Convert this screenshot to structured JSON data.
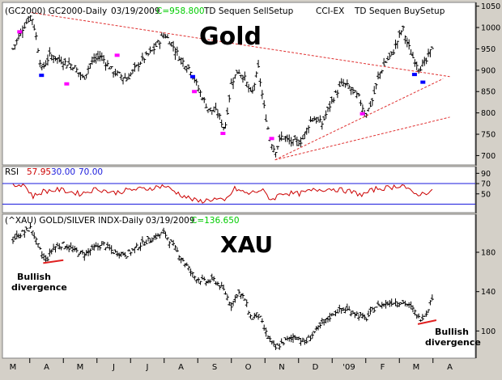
{
  "colors": {
    "frame": "#d4d0c8",
    "panel_bg": "#ffffff",
    "bar": "#000000",
    "trendline": "#e03030",
    "divergence": "#e02020",
    "rsi_line": "#cc0000",
    "rsi_bands": "#1a1adc",
    "close_text": "#00cc00",
    "sell_setup": "#ff00ff",
    "buy_setup": "#0000ff"
  },
  "gold_panel": {
    "header_symbol": "(GC2000) GC2000-Daily",
    "header_date": "03/19/2009",
    "header_close": "C=958.800",
    "header_study_1": "TD Sequen SellSetup",
    "header_study_2": "CCI-EX",
    "header_study_3": "TD Sequen BuySetup",
    "title": "Gold"
  },
  "rsi_panel": {
    "label": "RSI",
    "value_1": "57.95",
    "value_2": "30.00",
    "value_3": "70.00"
  },
  "xau_panel": {
    "header_symbol": "(^XAU) GOLD/SILVER INDX-Daily",
    "header_date": "03/19/2009",
    "header_close": "C=136.650",
    "title": "XAU",
    "annotation_left_1": "Bullish",
    "annotation_left_2": "divergence",
    "annotation_right_1": "Bullish",
    "annotation_right_2": "divergence"
  },
  "x_axis": {
    "labels": [
      "M",
      "A",
      "M",
      "J",
      "J",
      "A",
      "S",
      "O",
      "N",
      "D",
      "'09",
      "F",
      "M",
      "A"
    ]
  },
  "chart_data": [
    {
      "type": "ohlc",
      "name": "GC2000 Daily",
      "y_axis_ticks": [
        700,
        750,
        800,
        850,
        900,
        950,
        1000,
        1050
      ],
      "ylim": [
        680,
        1055
      ],
      "months": [
        "M",
        "A",
        "M",
        "J",
        "J",
        "A",
        "S",
        "O",
        "N",
        "D",
        "'09",
        "F",
        "M",
        "A"
      ],
      "close_path": [
        {
          "m": 0.0,
          "v": 950
        },
        {
          "m": 0.3,
          "v": 1000
        },
        {
          "m": 0.55,
          "v": 1030
        },
        {
          "m": 0.7,
          "v": 975
        },
        {
          "m": 0.85,
          "v": 900
        },
        {
          "m": 1.1,
          "v": 935
        },
        {
          "m": 1.5,
          "v": 920
        },
        {
          "m": 1.8,
          "v": 910
        },
        {
          "m": 2.1,
          "v": 880
        },
        {
          "m": 2.3,
          "v": 915
        },
        {
          "m": 2.6,
          "v": 935
        },
        {
          "m": 3.0,
          "v": 895
        },
        {
          "m": 3.4,
          "v": 880
        },
        {
          "m": 3.8,
          "v": 920
        },
        {
          "m": 4.2,
          "v": 950
        },
        {
          "m": 4.5,
          "v": 985
        },
        {
          "m": 4.7,
          "v": 965
        },
        {
          "m": 5.0,
          "v": 925
        },
        {
          "m": 5.3,
          "v": 900
        },
        {
          "m": 5.5,
          "v": 860
        },
        {
          "m": 5.8,
          "v": 810
        },
        {
          "m": 6.1,
          "v": 800
        },
        {
          "m": 6.3,
          "v": 760
        },
        {
          "m": 6.5,
          "v": 870
        },
        {
          "m": 6.7,
          "v": 900
        },
        {
          "m": 6.9,
          "v": 880
        },
        {
          "m": 7.1,
          "v": 840
        },
        {
          "m": 7.3,
          "v": 905
        },
        {
          "m": 7.5,
          "v": 800
        },
        {
          "m": 7.65,
          "v": 740
        },
        {
          "m": 7.8,
          "v": 710
        },
        {
          "m": 8.0,
          "v": 745
        },
        {
          "m": 8.3,
          "v": 730
        },
        {
          "m": 8.6,
          "v": 735
        },
        {
          "m": 8.9,
          "v": 790
        },
        {
          "m": 9.2,
          "v": 775
        },
        {
          "m": 9.5,
          "v": 830
        },
        {
          "m": 9.8,
          "v": 870
        },
        {
          "m": 10.0,
          "v": 860
        },
        {
          "m": 10.3,
          "v": 835
        },
        {
          "m": 10.5,
          "v": 795
        },
        {
          "m": 10.7,
          "v": 830
        },
        {
          "m": 10.9,
          "v": 890
        },
        {
          "m": 11.1,
          "v": 920
        },
        {
          "m": 11.3,
          "v": 940
        },
        {
          "m": 11.5,
          "v": 980
        },
        {
          "m": 11.6,
          "v": 1000
        },
        {
          "m": 11.75,
          "v": 960
        },
        {
          "m": 11.9,
          "v": 930
        },
        {
          "m": 12.1,
          "v": 905
        },
        {
          "m": 12.3,
          "v": 920
        },
        {
          "m": 12.5,
          "v": 958.8
        }
      ],
      "annotations": [
        {
          "text": "Gold",
          "kind": "title"
        },
        {
          "kind": "trendline",
          "from": {
            "m": 0.55,
            "v": 1035
          },
          "to": {
            "m": 13.0,
            "v": 885
          }
        },
        {
          "kind": "trendline",
          "from": {
            "m": 7.8,
            "v": 690
          },
          "to": {
            "m": 12.8,
            "v": 880
          }
        },
        {
          "kind": "trendline",
          "from": {
            "m": 7.8,
            "v": 690
          },
          "to": {
            "m": 13.0,
            "v": 790
          }
        }
      ]
    },
    {
      "type": "line",
      "name": "RSI",
      "y_axis_ticks": [
        50,
        70,
        90
      ],
      "ylim": [
        15,
        100
      ],
      "bands": [
        30,
        70
      ],
      "value_path": [
        {
          "m": 0.0,
          "v": 65
        },
        {
          "m": 0.3,
          "v": 70
        },
        {
          "m": 0.6,
          "v": 45
        },
        {
          "m": 0.9,
          "v": 55
        },
        {
          "m": 1.4,
          "v": 58
        },
        {
          "m": 2.0,
          "v": 50
        },
        {
          "m": 2.5,
          "v": 60
        },
        {
          "m": 3.0,
          "v": 52
        },
        {
          "m": 3.5,
          "v": 58
        },
        {
          "m": 4.0,
          "v": 60
        },
        {
          "m": 4.5,
          "v": 66
        },
        {
          "m": 5.0,
          "v": 48
        },
        {
          "m": 5.5,
          "v": 35
        },
        {
          "m": 6.0,
          "v": 40
        },
        {
          "m": 6.3,
          "v": 35
        },
        {
          "m": 6.6,
          "v": 60
        },
        {
          "m": 7.0,
          "v": 50
        },
        {
          "m": 7.4,
          "v": 58
        },
        {
          "m": 7.7,
          "v": 38
        },
        {
          "m": 8.0,
          "v": 52
        },
        {
          "m": 8.5,
          "v": 50
        },
        {
          "m": 9.0,
          "v": 58
        },
        {
          "m": 9.5,
          "v": 60
        },
        {
          "m": 10.0,
          "v": 55
        },
        {
          "m": 10.4,
          "v": 48
        },
        {
          "m": 10.8,
          "v": 60
        },
        {
          "m": 11.2,
          "v": 62
        },
        {
          "m": 11.6,
          "v": 68
        },
        {
          "m": 11.9,
          "v": 50
        },
        {
          "m": 12.2,
          "v": 50
        },
        {
          "m": 12.5,
          "v": 57.95
        }
      ]
    },
    {
      "type": "ohlc",
      "name": "^XAU Daily",
      "y_axis_ticks": [
        100,
        140,
        180
      ],
      "ylim": [
        74,
        217
      ],
      "months": [
        "M",
        "A",
        "M",
        "J",
        "J",
        "A",
        "S",
        "O",
        "N",
        "D",
        "'09",
        "F",
        "M",
        "A"
      ],
      "close_path": [
        {
          "m": 0.0,
          "v": 193
        },
        {
          "m": 0.3,
          "v": 200
        },
        {
          "m": 0.55,
          "v": 205
        },
        {
          "m": 0.7,
          "v": 190
        },
        {
          "m": 0.85,
          "v": 178
        },
        {
          "m": 1.0,
          "v": 172
        },
        {
          "m": 1.2,
          "v": 185
        },
        {
          "m": 1.5,
          "v": 188
        },
        {
          "m": 1.8,
          "v": 182
        },
        {
          "m": 2.1,
          "v": 178
        },
        {
          "m": 2.4,
          "v": 184
        },
        {
          "m": 2.7,
          "v": 188
        },
        {
          "m": 3.0,
          "v": 180
        },
        {
          "m": 3.4,
          "v": 178
        },
        {
          "m": 3.8,
          "v": 188
        },
        {
          "m": 4.2,
          "v": 195
        },
        {
          "m": 4.5,
          "v": 200
        },
        {
          "m": 4.8,
          "v": 185
        },
        {
          "m": 5.1,
          "v": 170
        },
        {
          "m": 5.4,
          "v": 155
        },
        {
          "m": 5.7,
          "v": 150
        },
        {
          "m": 6.0,
          "v": 152
        },
        {
          "m": 6.3,
          "v": 140
        },
        {
          "m": 6.5,
          "v": 126
        },
        {
          "m": 6.7,
          "v": 140
        },
        {
          "m": 6.9,
          "v": 132
        },
        {
          "m": 7.1,
          "v": 112
        },
        {
          "m": 7.3,
          "v": 118
        },
        {
          "m": 7.5,
          "v": 100
        },
        {
          "m": 7.8,
          "v": 82
        },
        {
          "m": 8.1,
          "v": 90
        },
        {
          "m": 8.4,
          "v": 95
        },
        {
          "m": 8.7,
          "v": 88
        },
        {
          "m": 9.0,
          "v": 100
        },
        {
          "m": 9.3,
          "v": 110
        },
        {
          "m": 9.6,
          "v": 120
        },
        {
          "m": 9.9,
          "v": 122
        },
        {
          "m": 10.2,
          "v": 118
        },
        {
          "m": 10.5,
          "v": 112
        },
        {
          "m": 10.8,
          "v": 125
        },
        {
          "m": 11.1,
          "v": 128
        },
        {
          "m": 11.4,
          "v": 130
        },
        {
          "m": 11.7,
          "v": 128
        },
        {
          "m": 11.9,
          "v": 122
        },
        {
          "m": 12.1,
          "v": 112
        },
        {
          "m": 12.3,
          "v": 118
        },
        {
          "m": 12.5,
          "v": 136.65
        }
      ],
      "annotations": [
        {
          "text": "XAU",
          "kind": "title"
        },
        {
          "text": "Bullish divergence",
          "kind": "label",
          "near": {
            "m": 0.7,
            "v": 170
          }
        },
        {
          "text": "Bullish divergence",
          "kind": "label",
          "near": {
            "m": 12.2,
            "v": 108
          }
        }
      ]
    }
  ]
}
